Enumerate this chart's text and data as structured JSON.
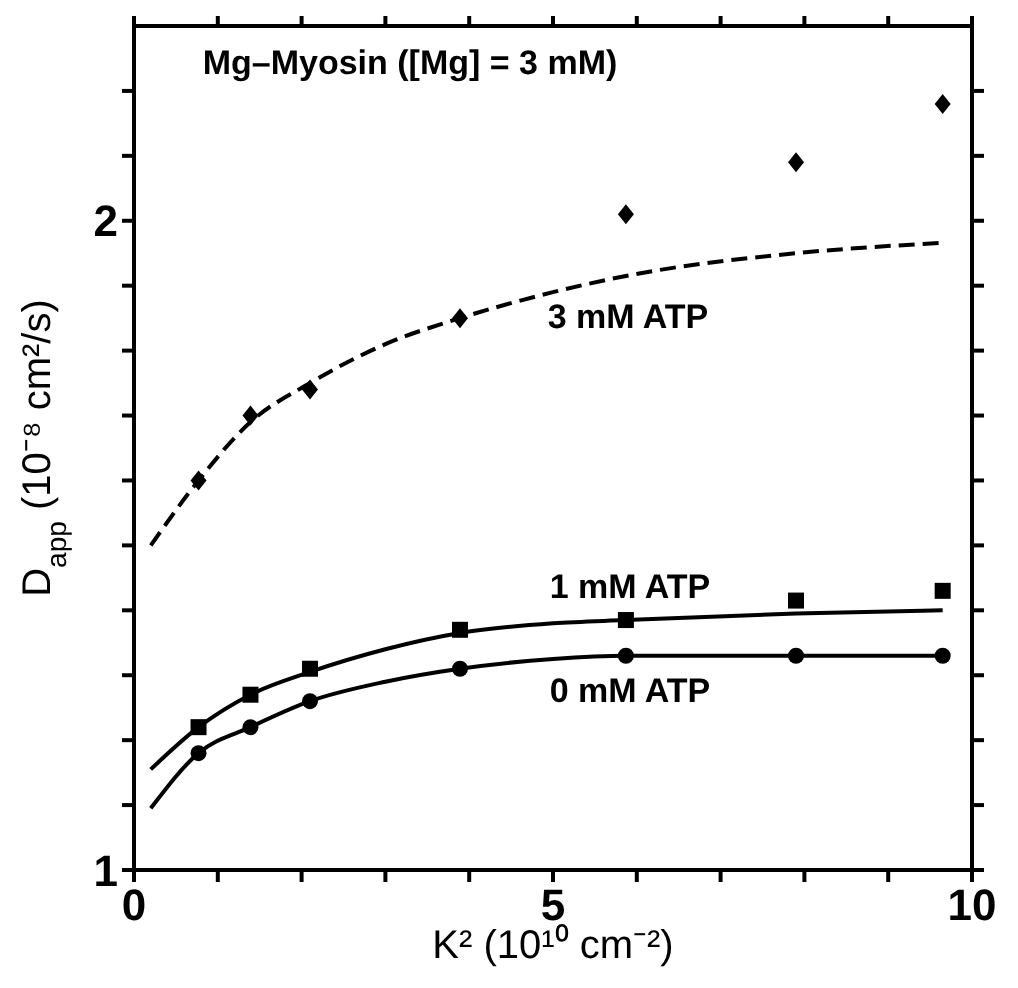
{
  "chart_data": {
    "type": "scatter",
    "title": "Mg–Myosin ([Mg] = 3 mM)",
    "xlabel": "K² (10¹⁰ cm⁻²)",
    "ylabel": "D$_{app}$ (10⁻⁸ cm²/s)",
    "xlim": [
      0,
      10
    ],
    "ylim": [
      1,
      2.3
    ],
    "xticks": [
      0,
      {
        "value": 1,
        "label": null
      },
      {
        "value": 2,
        "label": null
      },
      {
        "value": 3,
        "label": null
      },
      {
        "value": 4,
        "label": null
      },
      5,
      {
        "value": 6,
        "label": null
      },
      {
        "value": 7,
        "label": null
      },
      {
        "value": 8,
        "label": null
      },
      {
        "value": 9,
        "label": null
      },
      10
    ],
    "yticks": [
      1,
      {
        "value": 1.1,
        "label": null
      },
      {
        "value": 1.2,
        "label": null
      },
      {
        "value": 1.3,
        "label": null
      },
      {
        "value": 1.4,
        "label": null
      },
      {
        "value": 1.5,
        "label": null
      },
      {
        "value": 1.6,
        "label": null
      },
      {
        "value": 1.7,
        "label": null
      },
      {
        "value": 1.8,
        "label": null
      },
      {
        "value": 1.9,
        "label": null
      },
      2,
      {
        "value": 2.1,
        "label": null
      },
      {
        "value": 2.2,
        "label": null
      }
    ],
    "series": [
      {
        "marker": "diamond",
        "color": "#000000",
        "x": [
          0.77,
          1.39,
          2.1,
          3.89,
          5.87,
          7.9,
          9.65
        ],
        "values": [
          1.6,
          1.7,
          1.74,
          1.85,
          2.01,
          2.09,
          2.18
        ]
      },
      {
        "marker": "square",
        "color": "#000000",
        "x": [
          0.77,
          1.39,
          2.1,
          3.89,
          5.87,
          7.9,
          9.65
        ],
        "values": [
          1.22,
          1.27,
          1.31,
          1.37,
          1.385,
          1.415,
          1.43
        ]
      },
      {
        "marker": "circle",
        "color": "#000000",
        "x": [
          0.77,
          1.39,
          2.1,
          3.89,
          5.87,
          7.9,
          9.65
        ],
        "values": [
          1.18,
          1.22,
          1.26,
          1.31,
          1.33,
          1.33,
          1.33
        ]
      },
      {
        "type": "line",
        "line_style": "dashed",
        "marker": "none",
        "color": "#000000",
        "x": [
          0.2,
          0.77,
          1.39,
          2.1,
          3.0,
          3.89,
          5.0,
          5.87,
          7.9,
          9.65
        ],
        "values": [
          1.5,
          1.6,
          1.69,
          1.75,
          1.81,
          1.85,
          1.89,
          1.915,
          1.95,
          1.966
        ]
      },
      {
        "type": "line",
        "line_style": "solid",
        "marker": "none",
        "color": "#000000",
        "x": [
          0.2,
          0.77,
          1.39,
          2.1,
          3.0,
          3.89,
          5.0,
          5.87,
          7.9,
          9.65
        ],
        "values": [
          1.155,
          1.22,
          1.27,
          1.305,
          1.34,
          1.365,
          1.38,
          1.385,
          1.395,
          1.4
        ]
      },
      {
        "type": "line",
        "line_style": "solid",
        "marker": "none",
        "color": "#000000",
        "x": [
          0.2,
          0.77,
          1.39,
          2.1,
          3.0,
          3.89,
          5.0,
          5.87,
          7.9,
          9.65
        ],
        "values": [
          1.095,
          1.18,
          1.22,
          1.26,
          1.29,
          1.31,
          1.325,
          1.33,
          1.33,
          1.33
        ]
      }
    ],
    "annotations": [
      "3 mM ATP",
      "1 mM ATP",
      "0 mM ATP"
    ]
  }
}
